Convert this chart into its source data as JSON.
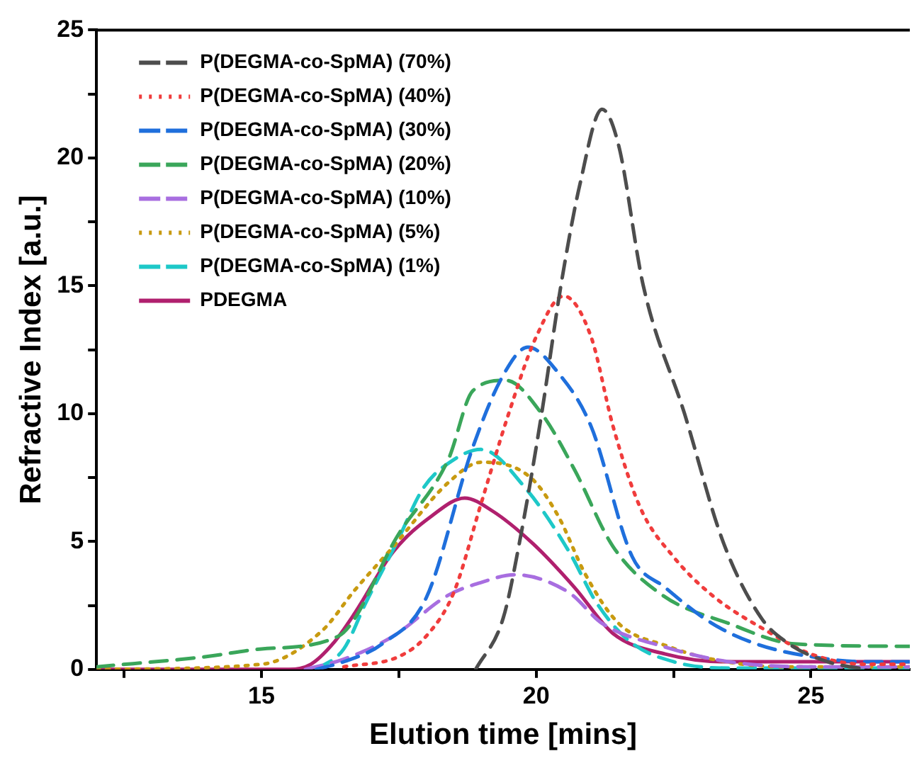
{
  "chart_data": {
    "type": "line",
    "xlabel": "Elution time [mins]",
    "ylabel": "Refractive Index [a.u.]",
    "xlim": [
      12,
      26.8
    ],
    "xticks": [
      {
        "value": 12.5,
        "label": null
      },
      15,
      {
        "value": 17.5,
        "label": null
      },
      20,
      {
        "value": 22.5,
        "label": null
      },
      25
    ],
    "ylim": [
      0,
      25
    ],
    "yticks": [
      0,
      {
        "value": 2.5,
        "label": null
      },
      5,
      {
        "value": 7.5,
        "label": null
      },
      10,
      {
        "value": 12.5,
        "label": null
      },
      15,
      {
        "value": 17.5,
        "label": null
      },
      20,
      {
        "value": 22.5,
        "label": null
      },
      25
    ],
    "grid": false,
    "legend": "top left",
    "marker": "none",
    "series": [
      {
        "name": "P(DEGMA-co-SpMA) (70%)",
        "color": "#4d4d4d",
        "line_style": "dashed",
        "x": [
          18.9,
          19.4,
          19.7,
          20.1,
          20.45,
          20.8,
          21.2,
          21.5,
          21.95,
          22.7,
          23.4,
          24.1,
          24.6,
          25.3,
          26
        ],
        "values": [
          0,
          2,
          5,
          10,
          15,
          19,
          21.9,
          20.5,
          15,
          10,
          5,
          2,
          1,
          0.3,
          0
        ]
      },
      {
        "name": "P(DEGMA-co-SpMA) (40%)",
        "color": "#f03c3c",
        "line_style": "dotted",
        "x": [
          16.5,
          17.5,
          18,
          18.5,
          19,
          19.5,
          20,
          20.5,
          21,
          21.4,
          21.9,
          22.5,
          23.2,
          24.2,
          25,
          26,
          26.8
        ],
        "values": [
          0.1,
          0.5,
          1.3,
          3,
          6.5,
          10,
          13,
          14.6,
          13,
          9.5,
          6.3,
          4.4,
          2.9,
          1.5,
          0.6,
          0.2,
          0.2
        ]
      },
      {
        "name": "P(DEGMA-co-SpMA) (30%)",
        "color": "#1f6fdc",
        "line_style": "dashed",
        "x": [
          16,
          16.5,
          17.2,
          18,
          18.85,
          19.4,
          19.85,
          20.4,
          21,
          21.75,
          22.35,
          23.2,
          24,
          25,
          26,
          26.8
        ],
        "values": [
          0,
          0.3,
          1,
          2.8,
          8.7,
          11.5,
          12.6,
          11.6,
          9.5,
          4.4,
          3.2,
          1.8,
          1,
          0.5,
          0.3,
          0.3
        ]
      },
      {
        "name": "P(DEGMA-co-SpMA) (20%)",
        "color": "#3aa65a",
        "line_style": "dashed",
        "x": [
          12,
          14,
          15,
          16.4,
          17.5,
          18.4,
          18.85,
          19.45,
          20.1,
          20.7,
          21.4,
          22.3,
          23.5,
          24.7,
          26.8
        ],
        "values": [
          0.1,
          0.5,
          0.8,
          1.3,
          5.3,
          8.2,
          10.9,
          11.3,
          10,
          7.8,
          4.8,
          2.9,
          1.8,
          1,
          0.9
        ]
      },
      {
        "name": "P(DEGMA-co-SpMA) (10%)",
        "color": "#a86ee0",
        "line_style": "dashed",
        "x": [
          15.8,
          16.5,
          17.4,
          18.4,
          19,
          19.6,
          20.6,
          21.2,
          22.3,
          23.5,
          25,
          26.8
        ],
        "values": [
          0,
          0.4,
          1.3,
          2.9,
          3.4,
          3.7,
          3,
          1.8,
          0.9,
          0.3,
          0.1,
          0.1
        ]
      },
      {
        "name": "P(DEGMA-co-SpMA) (5%)",
        "color": "#c89a10",
        "line_style": "dotted",
        "x": [
          12,
          15,
          16.1,
          16.7,
          17.4,
          18.4,
          19,
          19.9,
          20.4,
          20.9,
          21.5,
          22.4,
          23.2,
          24.5,
          26.8
        ],
        "values": [
          0,
          0.2,
          1.5,
          3.1,
          4.8,
          7.3,
          8.1,
          7.5,
          6,
          3.7,
          1.8,
          0.9,
          0.4,
          0.1,
          0.1
        ]
      },
      {
        "name": "P(DEGMA-co-SpMA) (1%)",
        "color": "#1ec8c8",
        "line_style": "dashed",
        "x": [
          16,
          16.5,
          16.9,
          17.45,
          17.95,
          18.5,
          19,
          19.8,
          20.6,
          21.1,
          21.7,
          22.5,
          23.5,
          26.8
        ],
        "values": [
          0,
          0.8,
          2.6,
          4.9,
          7.1,
          8.2,
          8.6,
          7.1,
          4.6,
          2.6,
          1.1,
          0.3,
          0.05,
          0.05
        ]
      },
      {
        "name": "PDEGMA",
        "color": "#b0206e",
        "line_style": "solid",
        "x": [
          12,
          15.5,
          15.9,
          16.3,
          16.7,
          17.4,
          18.1,
          18.7,
          19.2,
          19.95,
          20.7,
          21.4,
          22.35,
          23.4,
          26.8
        ],
        "values": [
          0,
          0,
          0.2,
          1,
          2.2,
          4.6,
          6,
          6.7,
          6.2,
          4.9,
          3.2,
          1.4,
          0.6,
          0.3,
          0.3
        ]
      }
    ]
  }
}
